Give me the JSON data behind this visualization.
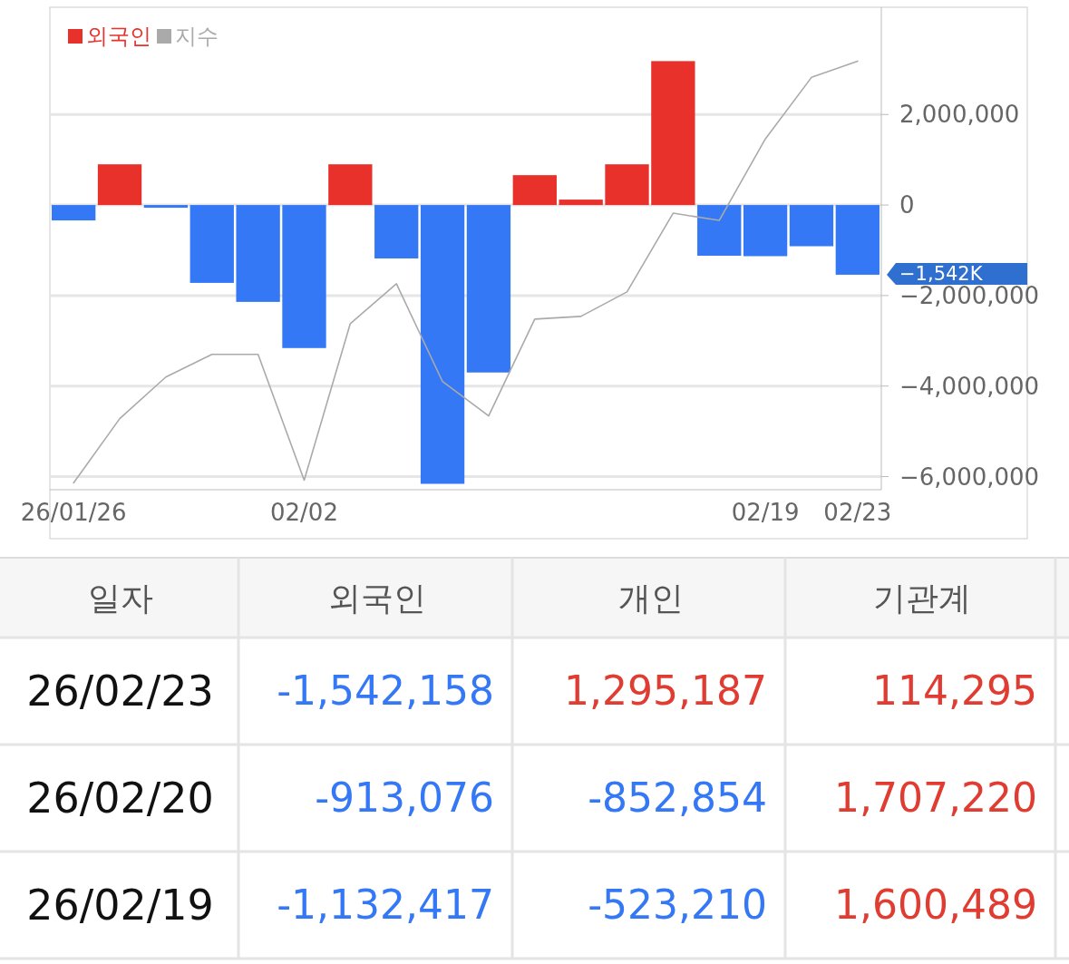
{
  "chart_data": [
    {
      "type": "bar",
      "categories": [
        "26/01/26",
        null,
        null,
        null,
        null,
        "02/02",
        null,
        null,
        null,
        null,
        null,
        null,
        null,
        null,
        null,
        "02/19",
        null,
        "02/23"
      ],
      "series": [
        {
          "type": "bar",
          "name": "외국인",
          "color": "#e8312a",
          "colors": [
            "#3478f6",
            "#e8312a",
            "#3478f6",
            "#3478f6",
            "#3478f6",
            "#3478f6",
            "#e8312a",
            "#3478f6",
            "#3478f6",
            "#3478f6",
            "#e8312a",
            "#e8312a",
            "#e8312a",
            "#e8312a",
            "#3478f6",
            "#3478f6",
            "#3478f6",
            "#3478f6"
          ],
          "values": [
            -340000,
            900000,
            -60000,
            -1720000,
            -2140000,
            -3160000,
            900000,
            -1180000,
            -6160000,
            -3700000,
            660000,
            120000,
            900000,
            3180000,
            -1120000,
            -1130000,
            -910000,
            -1540000
          ]
        },
        {
          "type": "line",
          "name": "지수",
          "color": "#aaaaaa",
          "values": [
            -6140000,
            -4720000,
            -3800000,
            -3300000,
            -3300000,
            -6080000,
            -2620000,
            -1740000,
            -3900000,
            -4660000,
            -2520000,
            -2460000,
            -1920000,
            -180000,
            -340000,
            1460000,
            2820000,
            3180000
          ]
        }
      ],
      "ylim": [
        -6290000,
        4370000
      ],
      "yticks": [
        {
          "value": 2000000,
          "label": "2,000,000"
        },
        0,
        {
          "value": -2000000,
          "label": "−2,000,000"
        },
        {
          "value": -4000000,
          "label": "−4,000,000"
        },
        {
          "value": -6000000,
          "label": "−6,000,000"
        }
      ],
      "grid": "y",
      "legend": "top left",
      "annotations": [
        {
          "text": "−1,542K",
          "x": "02/23",
          "y": -1540000
        }
      ]
    },
    {
      "type": "other",
      "xlabel": "일자",
      "categories": [
        "26/02/23",
        "26/02/20",
        "26/02/19"
      ],
      "series": [
        {
          "name": "외국인",
          "values": [
            -1542158,
            -913076,
            -1132417
          ],
          "value_labels": [
            "-1,542,158",
            "-913,076",
            "-1,132,417"
          ]
        },
        {
          "name": "개인",
          "values": [
            1295187,
            -852854,
            -523210
          ],
          "value_labels": [
            "1,295,187",
            "-852,854",
            "-523,210"
          ]
        },
        {
          "name": "기관계",
          "values": [
            114295,
            1707220,
            1600489
          ],
          "value_labels": [
            "114,295",
            "1,707,220",
            "1,600,489"
          ]
        }
      ]
    }
  ]
}
